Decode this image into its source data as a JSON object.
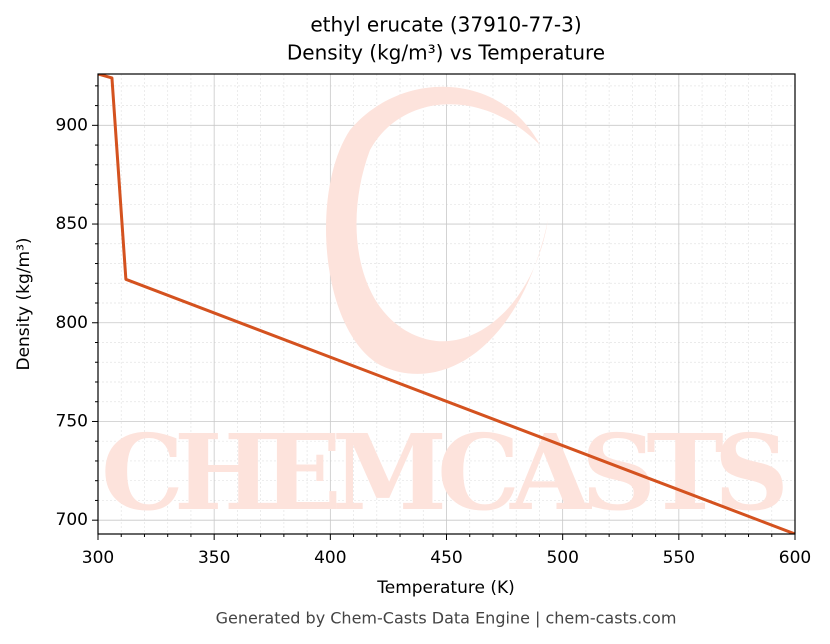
{
  "chart_data": {
    "type": "line",
    "title": "ethyl erucate (37910-77-3)",
    "subtitle": "Density (kg/m³) vs Temperature",
    "x_label": "Temperature (K)",
    "y_label": "Density (kg/m³)",
    "footer": "Generated by Chem-Casts Data Engine | chem-casts.com",
    "watermark": "CHEMCASTS",
    "x": [
      300,
      306,
      312,
      600
    ],
    "series": [
      {
        "name": "Density",
        "color": "#d4521f",
        "values": [
          926,
          924,
          822,
          693
        ]
      }
    ],
    "xlim": [
      300,
      600
    ],
    "xticks": [
      300,
      350,
      400,
      450,
      500,
      550,
      600
    ],
    "ylim": [
      693,
      926
    ],
    "yticks": [
      700,
      750,
      800,
      850,
      900
    ],
    "grid": true,
    "minor_grid": true
  }
}
